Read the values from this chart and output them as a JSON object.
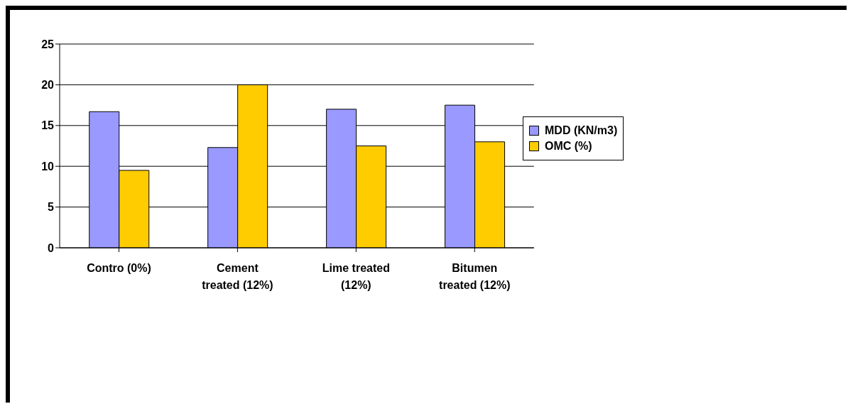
{
  "chart_data": {
    "type": "bar",
    "categories": [
      "Contro (0%)",
      "Cement treated (12%)",
      "Lime treated (12%)",
      "Bitumen treated (12%)"
    ],
    "series": [
      {
        "name": "MDD (KN/m3)",
        "color": "#9999ff",
        "values": [
          16.7,
          12.3,
          17.0,
          17.5
        ]
      },
      {
        "name": "OMC (%)",
        "color": "#ffcc00",
        "values": [
          9.5,
          20.0,
          12.5,
          13.0
        ]
      }
    ],
    "ylim": [
      0,
      25
    ],
    "yticks": [
      0,
      5,
      10,
      15,
      20,
      25
    ],
    "grid": "y",
    "legend": "right"
  }
}
